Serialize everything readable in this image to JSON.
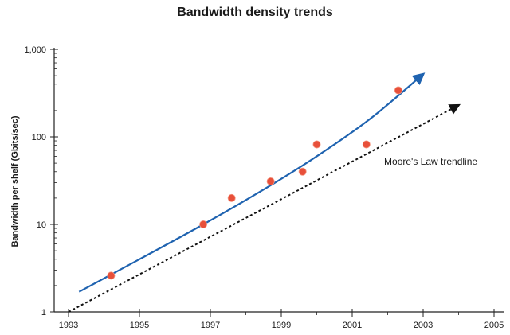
{
  "chart_data": {
    "type": "scatter",
    "title": "Bandwidth density trends",
    "xlabel": "",
    "ylabel": "Bandwidth per shelf (Gbits/sec)",
    "xlim": [
      1993,
      2005
    ],
    "ylim": [
      1,
      1000
    ],
    "yscale": "log",
    "xticks": [
      1993,
      1995,
      1997,
      1999,
      2001,
      2003,
      2005
    ],
    "xtick_labels": [
      "1993",
      "1995",
      "1997",
      "1999",
      "2001",
      "2003",
      "2005"
    ],
    "yticks": [
      1,
      10,
      100,
      1000
    ],
    "ytick_labels": [
      "1",
      "10",
      "100",
      "1,000"
    ],
    "grid": false,
    "series": [
      {
        "kind": "scatter",
        "color": "#e8503a",
        "points": [
          {
            "x": 1994.2,
            "y": 2.6
          },
          {
            "x": 1996.8,
            "y": 10
          },
          {
            "x": 1997.6,
            "y": 20
          },
          {
            "x": 1998.7,
            "y": 31
          },
          {
            "x": 1999.6,
            "y": 40
          },
          {
            "x": 2000.0,
            "y": 82
          },
          {
            "x": 2001.4,
            "y": 82
          },
          {
            "x": 2002.3,
            "y": 340
          }
        ]
      },
      {
        "kind": "trend-curve",
        "color": "#1f63b0",
        "arrow": true,
        "points": [
          {
            "x": 1993.3,
            "y": 1.7
          },
          {
            "x": 1995.0,
            "y": 4.0
          },
          {
            "x": 1996.8,
            "y": 10
          },
          {
            "x": 1998.5,
            "y": 25
          },
          {
            "x": 2000.0,
            "y": 60
          },
          {
            "x": 2001.5,
            "y": 160
          },
          {
            "x": 2003.0,
            "y": 520
          }
        ]
      },
      {
        "kind": "trend-line",
        "dashed": true,
        "color": "#111111",
        "arrow": true,
        "points": [
          {
            "x": 1993.0,
            "y": 1.0
          },
          {
            "x": 2004.0,
            "y": 230
          }
        ]
      }
    ],
    "annotations": [
      {
        "text": "Moore's Law trendline",
        "x": 2001.9,
        "y": 52
      }
    ]
  }
}
